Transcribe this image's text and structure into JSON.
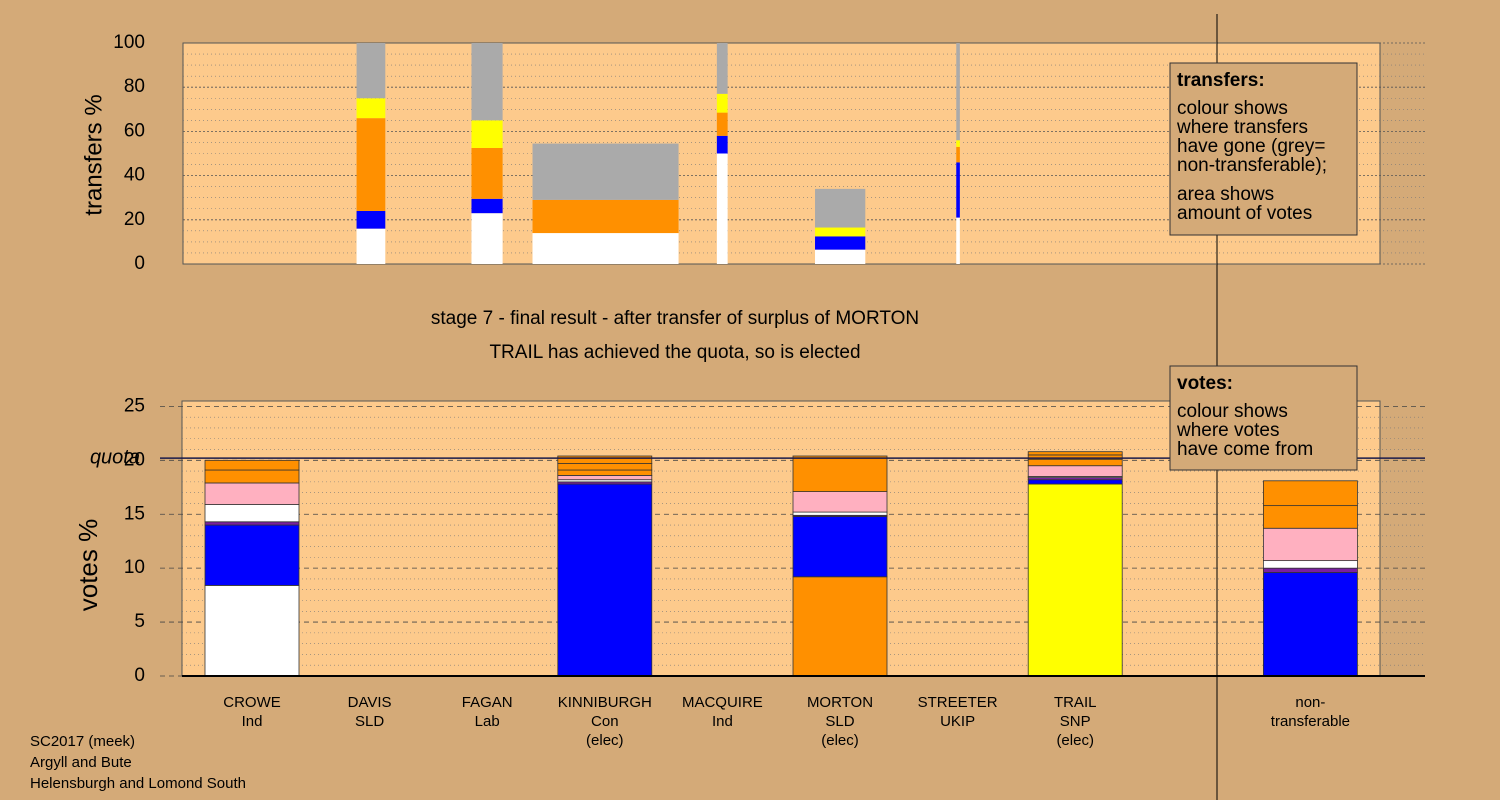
{
  "chart_data": [
    {
      "type": "bar",
      "stacked": true,
      "ylabel": "transfers %",
      "ylim": [
        0,
        100
      ],
      "yticks": [
        0,
        20,
        40,
        60,
        80,
        100
      ],
      "grid": true,
      "bar_left": [
        14.5,
        24.1,
        29.2,
        44.6,
        52.8,
        64.6
      ],
      "bar_right": [
        16.9,
        26.7,
        41.4,
        45.5,
        57.0,
        64.9
      ],
      "series": [
        {
          "color": "#ffffff",
          "values": [
            16,
            23,
            14,
            50,
            6.5,
            21
          ]
        },
        {
          "color": "#0000ff",
          "values": [
            8,
            6.5,
            0,
            8,
            6,
            25
          ]
        },
        {
          "color": "#ff9000",
          "values": [
            42,
            23,
            15,
            10.5,
            0,
            7
          ]
        },
        {
          "color": "#ffff00",
          "values": [
            9,
            12.5,
            0,
            8.5,
            4,
            3
          ]
        },
        {
          "color": "#aaaaaa",
          "values": [
            25,
            35,
            25.5,
            23,
            17.5,
            44
          ]
        }
      ],
      "legend_title": "transfers:",
      "legend_lines": [
        "colour shows",
        "where transfers",
        "have gone (grey=",
        "non-transferable);"
      ],
      "legend_lines2": [
        "area shows",
        "amount of votes"
      ]
    },
    {
      "type": "bar",
      "stacked": true,
      "title": "stage 7 - final result - after transfer of surplus of MORTON",
      "subtitle": "TRAIL has achieved the quota, so is elected",
      "ylabel": "votes %",
      "ylim": [
        0,
        25.5
      ],
      "yticks": [
        0,
        5,
        10,
        15,
        20,
        25
      ],
      "grid": true,
      "quota": 20.2,
      "quota_label": "quota",
      "categories": [
        [
          "CROWE",
          "Ind"
        ],
        [
          "DAVIS",
          "SLD"
        ],
        [
          "FAGAN",
          "Lab"
        ],
        [
          "KINNIBURGH",
          "Con",
          "(elec)"
        ],
        [
          "MACQUIRE",
          "Ind"
        ],
        [
          "MORTON",
          "SLD",
          "(elec)"
        ],
        [
          "STREETER",
          "UKIP"
        ],
        [
          "TRAIL",
          "SNP",
          "(elec)"
        ],
        [
          "non-",
          "transferable"
        ]
      ],
      "series": [
        {
          "color": "#ffffff",
          "values": [
            8.4,
            0,
            0,
            0,
            0,
            0,
            0,
            0,
            0
          ]
        },
        {
          "color": "#ff9000",
          "values": [
            0,
            0,
            0,
            0,
            0,
            9.2,
            0,
            0,
            0
          ]
        },
        {
          "color": "#ffff00",
          "values": [
            0,
            0,
            0,
            0,
            0,
            0,
            0,
            17.8,
            0
          ]
        },
        {
          "color": "#0000ff",
          "values": [
            5.6,
            0,
            0,
            17.8,
            0,
            5.6,
            0,
            0.4,
            9.6
          ]
        },
        {
          "color": "#7a1fa0",
          "values": [
            0.3,
            0,
            0,
            0.2,
            0,
            0.1,
            0,
            0.2,
            0.4
          ]
        },
        {
          "color": "#ffffff",
          "values": [
            1.6,
            0,
            0,
            0.2,
            0,
            0.3,
            0,
            0.1,
            0.7
          ]
        },
        {
          "color": "#ffb0c0",
          "values": [
            2.0,
            0,
            0,
            0.4,
            0,
            1.9,
            0,
            1.0,
            3.0
          ]
        },
        {
          "color": "#ff9000",
          "values": [
            1.2,
            0,
            0,
            0.5,
            0,
            3.3,
            0,
            0.6,
            2.1
          ]
        },
        {
          "color": "#ff9000",
          "values": [
            0.9,
            0,
            0,
            0.6,
            0,
            0,
            0,
            0.4,
            2.3
          ]
        },
        {
          "color": "#ff9000",
          "values": [
            0,
            0,
            0,
            0.7,
            0,
            0,
            0,
            0.3,
            0
          ]
        }
      ],
      "legend_title": "votes:",
      "legend_lines": [
        "colour shows",
        "where votes",
        "have come from"
      ]
    }
  ],
  "footer": [
    "SC2017 (meek)",
    "Argyll and Bute",
    "Helensburgh and Lomond South"
  ]
}
